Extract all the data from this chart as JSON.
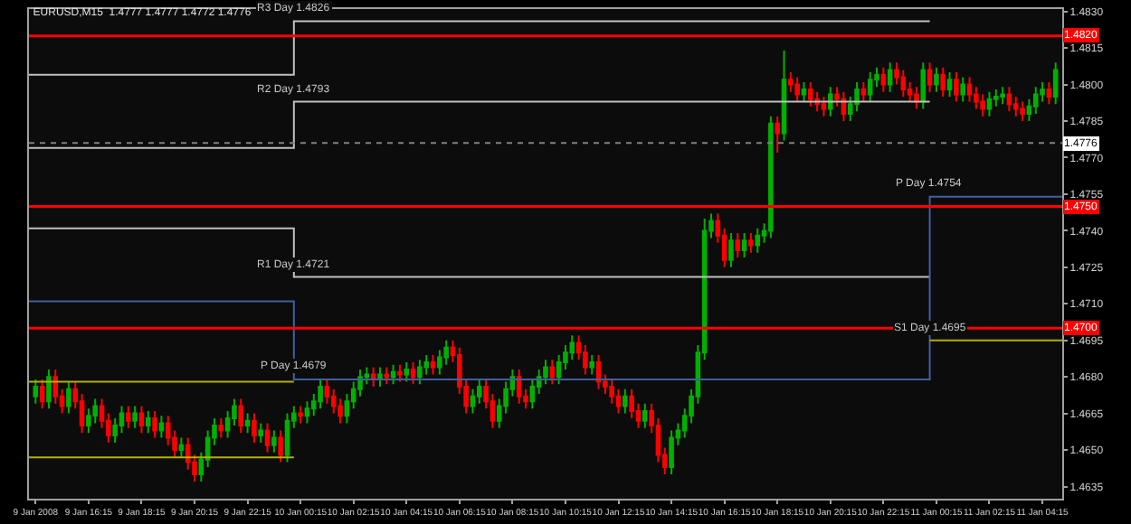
{
  "chart_data": {
    "type": "candlestick",
    "title": "EURUSD,M15  1.4777 1.4777 1.4772 1.4776",
    "colors": [
      "#00b000",
      "#ff0000",
      "#00b000",
      "#ff0000",
      "#ff0000",
      "#00b000",
      "#ff0000",
      "#ff0000",
      "#00b000",
      "#00b000",
      "#ff0000",
      "#ff0000",
      "#00b000",
      "#00b000",
      "#ff0000",
      "#00b000",
      "#ff0000",
      "#00b000",
      "#ff0000",
      "#00b000",
      "#ff0000",
      "#ff0000",
      "#00b000",
      "#ff0000",
      "#ff0000",
      "#00b000",
      "#00b000",
      "#00b000",
      "#ff0000",
      "#00b000",
      "#00b000",
      "#ff0000",
      "#00b000",
      "#ff0000",
      "#00b000",
      "#ff0000",
      "#00b000",
      "#ff0000",
      "#00b000",
      "#00b000",
      "#ff0000",
      "#00b000",
      "#00b000",
      "#00b000",
      "#ff0000",
      "#ff0000",
      "#ff0000",
      "#00b000",
      "#00b000",
      "#00b000",
      "#00b000",
      "#ff0000",
      "#00b000",
      "#ff0000",
      "#00b000",
      "#ff0000",
      "#00b000",
      "#ff0000",
      "#00b000",
      "#00b000",
      "#ff0000",
      "#00b000",
      "#00b000",
      "#ff0000",
      "#ff0000",
      "#ff0000",
      "#00b000",
      "#00b000",
      "#ff0000",
      "#ff0000",
      "#00b000",
      "#00b000",
      "#00b000",
      "#ff0000",
      "#ff0000",
      "#00b000",
      "#00b000",
      "#00b000",
      "#ff0000",
      "#00b000",
      "#00b000",
      "#00b000",
      "#ff0000",
      "#ff0000",
      "#00b000",
      "#ff0000",
      "#ff0000",
      "#ff0000",
      "#ff0000",
      "#00b000",
      "#ff0000",
      "#ff0000",
      "#00b000",
      "#ff0000",
      "#ff0000",
      "#ff0000",
      "#00b000",
      "#00b000",
      "#00b000",
      "#00b000",
      "#00b000",
      "#00b000",
      "#00b000",
      "#ff0000",
      "#ff0000",
      "#00b000",
      "#ff0000",
      "#00b000",
      "#ff0000",
      "#00b000",
      "#00b000",
      "#00b000",
      "#ff0000",
      "#00b000",
      "#ff0000",
      "#ff0000",
      "#00b000",
      "#ff0000",
      "#ff0000",
      "#ff0000",
      "#00b000",
      "#ff0000",
      "#ff0000",
      "#00b000",
      "#00b000",
      "#ff0000",
      "#00b000",
      "#00b000",
      "#ff0000",
      "#00b000",
      "#ff0000",
      "#ff0000",
      "#ff0000",
      "#ff0000",
      "#00b000",
      "#ff0000",
      "#00b000",
      "#ff0000",
      "#00b000",
      "#ff0000",
      "#00b000",
      "#ff0000",
      "#ff0000",
      "#ff0000",
      "#00b000",
      "#00b000",
      "#00b000",
      "#ff0000",
      "#ff0000",
      "#ff0000",
      "#00b000",
      "#00b000",
      "#00b000",
      "#ff0000",
      "#00b000"
    ],
    "x": [
      "2008-01-09T14:15",
      "2008-01-09T14:30",
      "2008-01-09T14:45",
      "2008-01-09T15:00",
      "2008-01-09T15:15",
      "2008-01-09T15:30",
      "2008-01-09T15:45",
      "2008-01-09T16:00",
      "2008-01-09T16:15",
      "2008-01-09T16:30",
      "2008-01-09T16:45",
      "2008-01-09T17:00",
      "2008-01-09T17:15",
      "2008-01-09T17:30",
      "2008-01-09T17:45",
      "2008-01-09T18:00",
      "2008-01-09T18:15",
      "2008-01-09T18:30",
      "2008-01-09T18:45",
      "2008-01-09T19:00",
      "2008-01-09T19:15",
      "2008-01-09T19:30",
      "2008-01-09T19:45",
      "2008-01-09T20:00",
      "2008-01-09T20:15",
      "2008-01-09T20:30",
      "2008-01-09T20:45",
      "2008-01-09T21:00",
      "2008-01-09T21:15",
      "2008-01-09T21:30",
      "2008-01-09T21:45",
      "2008-01-09T22:00",
      "2008-01-09T22:15",
      "2008-01-09T22:30",
      "2008-01-09T22:45",
      "2008-01-09T23:00",
      "2008-01-09T23:15",
      "2008-01-09T23:30",
      "2008-01-09T23:45",
      "2008-01-10T00:00",
      "2008-01-10T00:15",
      "2008-01-10T00:30",
      "2008-01-10T00:45",
      "2008-01-10T01:00",
      "2008-01-10T01:15",
      "2008-01-10T01:30",
      "2008-01-10T01:45",
      "2008-01-10T02:00",
      "2008-01-10T02:15",
      "2008-01-10T02:30",
      "2008-01-10T02:45",
      "2008-01-10T03:00",
      "2008-01-10T03:15",
      "2008-01-10T03:30",
      "2008-01-10T03:45",
      "2008-01-10T04:00",
      "2008-01-10T04:15",
      "2008-01-10T04:30",
      "2008-01-10T04:45",
      "2008-01-10T05:00",
      "2008-01-10T05:15",
      "2008-01-10T05:30",
      "2008-01-10T05:45",
      "2008-01-10T06:00",
      "2008-01-10T06:15",
      "2008-01-10T06:30",
      "2008-01-10T06:45",
      "2008-01-10T07:00",
      "2008-01-10T07:15",
      "2008-01-10T07:30",
      "2008-01-10T07:45",
      "2008-01-10T08:00",
      "2008-01-10T08:15",
      "2008-01-10T08:30",
      "2008-01-10T08:45",
      "2008-01-10T09:00",
      "2008-01-10T09:15",
      "2008-01-10T09:30",
      "2008-01-10T09:45",
      "2008-01-10T10:00",
      "2008-01-10T10:15",
      "2008-01-10T10:30",
      "2008-01-10T10:45",
      "2008-01-10T11:00",
      "2008-01-10T11:15",
      "2008-01-10T11:30",
      "2008-01-10T11:45",
      "2008-01-10T12:00",
      "2008-01-10T12:15",
      "2008-01-10T12:30",
      "2008-01-10T12:45",
      "2008-01-10T13:00",
      "2008-01-10T13:15",
      "2008-01-10T13:30",
      "2008-01-10T13:45",
      "2008-01-10T14:00",
      "2008-01-10T14:15",
      "2008-01-10T14:30",
      "2008-01-10T14:45",
      "2008-01-10T15:00",
      "2008-01-10T15:15",
      "2008-01-10T15:30",
      "2008-01-10T15:45",
      "2008-01-10T16:00",
      "2008-01-10T16:15",
      "2008-01-10T16:30",
      "2008-01-10T16:45",
      "2008-01-10T17:00",
      "2008-01-10T17:15",
      "2008-01-10T17:30",
      "2008-01-10T17:45",
      "2008-01-10T18:00",
      "2008-01-10T18:15",
      "2008-01-10T18:30",
      "2008-01-10T18:45",
      "2008-01-10T19:00",
      "2008-01-10T19:15",
      "2008-01-10T19:30",
      "2008-01-10T19:45",
      "2008-01-10T20:00",
      "2008-01-10T20:15",
      "2008-01-10T20:30",
      "2008-01-10T20:45",
      "2008-01-10T21:00",
      "2008-01-10T21:15",
      "2008-01-10T21:30",
      "2008-01-10T21:45",
      "2008-01-10T22:00",
      "2008-01-10T22:15",
      "2008-01-10T22:30",
      "2008-01-10T22:45",
      "2008-01-10T23:00",
      "2008-01-10T23:15",
      "2008-01-10T23:30",
      "2008-01-10T23:45",
      "2008-01-11T00:00",
      "2008-01-11T00:15",
      "2008-01-11T00:30",
      "2008-01-11T00:45",
      "2008-01-11T01:00",
      "2008-01-11T01:15",
      "2008-01-11T01:30",
      "2008-01-11T01:45",
      "2008-01-11T02:00",
      "2008-01-11T02:15",
      "2008-01-11T02:30",
      "2008-01-11T02:45",
      "2008-01-11T03:00",
      "2008-01-11T03:15",
      "2008-01-11T03:30",
      "2008-01-11T03:45",
      "2008-01-11T04:00",
      "2008-01-11T04:15",
      "2008-01-11T04:30",
      "2008-01-11T04:45"
    ],
    "ohlc": [
      [
        1.4672,
        1.4679,
        1.4669,
        1.4676
      ],
      [
        1.4676,
        1.4679,
        1.4667,
        1.467
      ],
      [
        1.467,
        1.4683,
        1.4667,
        1.468
      ],
      [
        1.468,
        1.4683,
        1.4669,
        1.4672
      ],
      [
        1.4672,
        1.4675,
        1.4665,
        1.4668
      ],
      [
        1.4668,
        1.4678,
        1.4665,
        1.4675
      ],
      [
        1.4675,
        1.4678,
        1.4667,
        1.467
      ],
      [
        1.467,
        1.4673,
        1.4657,
        1.466
      ],
      [
        1.466,
        1.4667,
        1.4657,
        1.4664
      ],
      [
        1.4664,
        1.4671,
        1.4661,
        1.4668
      ],
      [
        1.4668,
        1.4671,
        1.4659,
        1.4662
      ],
      [
        1.4662,
        1.4665,
        1.4653,
        1.4656
      ],
      [
        1.4656,
        1.4663,
        1.4653,
        1.466
      ],
      [
        1.466,
        1.4668,
        1.4657,
        1.4665
      ],
      [
        1.4665,
        1.4668,
        1.4659,
        1.4662
      ],
      [
        1.4662,
        1.4668,
        1.4659,
        1.4665
      ],
      [
        1.4665,
        1.4668,
        1.4657,
        1.466
      ],
      [
        1.466,
        1.4666,
        1.4657,
        1.4663
      ],
      [
        1.4663,
        1.4666,
        1.4655,
        1.4658
      ],
      [
        1.4658,
        1.4664,
        1.4655,
        1.4661
      ],
      [
        1.4661,
        1.4664,
        1.4652,
        1.4655
      ],
      [
        1.4655,
        1.4658,
        1.4647,
        1.465
      ],
      [
        1.465,
        1.4655,
        1.4647,
        1.4652
      ],
      [
        1.4652,
        1.4655,
        1.4642,
        1.4645
      ],
      [
        1.4645,
        1.4648,
        1.4637,
        1.464
      ],
      [
        1.464,
        1.4649,
        1.4637,
        1.4646
      ],
      [
        1.4646,
        1.4658,
        1.4643,
        1.4655
      ],
      [
        1.4655,
        1.4663,
        1.4652,
        1.466
      ],
      [
        1.466,
        1.4663,
        1.4655,
        1.4658
      ],
      [
        1.4658,
        1.4666,
        1.4655,
        1.4663
      ],
      [
        1.4663,
        1.4671,
        1.466,
        1.4668
      ],
      [
        1.4668,
        1.4671,
        1.4657,
        1.466
      ],
      [
        1.466,
        1.4665,
        1.4657,
        1.4662
      ],
      [
        1.4662,
        1.4665,
        1.4653,
        1.4656
      ],
      [
        1.4656,
        1.4661,
        1.4653,
        1.4658
      ],
      [
        1.4658,
        1.4661,
        1.4649,
        1.4652
      ],
      [
        1.4652,
        1.4658,
        1.4649,
        1.4655
      ],
      [
        1.4655,
        1.4658,
        1.4645,
        1.4648
      ],
      [
        1.4648,
        1.4665,
        1.4645,
        1.4662
      ],
      [
        1.4662,
        1.4668,
        1.4659,
        1.4665
      ],
      [
        1.4665,
        1.4668,
        1.4661,
        1.4664
      ],
      [
        1.4664,
        1.467,
        1.4661,
        1.4667
      ],
      [
        1.4667,
        1.4673,
        1.4664,
        1.467
      ],
      [
        1.467,
        1.4679,
        1.4667,
        1.4676
      ],
      [
        1.4676,
        1.4679,
        1.4669,
        1.4672
      ],
      [
        1.4672,
        1.4675,
        1.4665,
        1.4668
      ],
      [
        1.4668,
        1.4671,
        1.4661,
        1.4664
      ],
      [
        1.4664,
        1.4673,
        1.4661,
        1.467
      ],
      [
        1.467,
        1.4678,
        1.4667,
        1.4675
      ],
      [
        1.4675,
        1.4683,
        1.4672,
        1.468
      ],
      [
        1.468,
        1.4684,
        1.4677,
        1.4681
      ],
      [
        1.4681,
        1.4684,
        1.4676,
        1.4679
      ],
      [
        1.4679,
        1.4684,
        1.4676,
        1.4681
      ],
      [
        1.4681,
        1.4684,
        1.4677,
        1.468
      ],
      [
        1.468,
        1.4685,
        1.4677,
        1.4682
      ],
      [
        1.4682,
        1.4685,
        1.4678,
        1.4681
      ],
      [
        1.4681,
        1.4686,
        1.4678,
        1.4683
      ],
      [
        1.4683,
        1.4686,
        1.4677,
        1.468
      ],
      [
        1.468,
        1.4687,
        1.4677,
        1.4684
      ],
      [
        1.4684,
        1.4689,
        1.4681,
        1.4686
      ],
      [
        1.4686,
        1.4689,
        1.4681,
        1.4684
      ],
      [
        1.4684,
        1.4691,
        1.4681,
        1.4688
      ],
      [
        1.4688,
        1.4695,
        1.4685,
        1.4692
      ],
      [
        1.4692,
        1.4695,
        1.4686,
        1.4689
      ],
      [
        1.4689,
        1.4692,
        1.4673,
        1.4676
      ],
      [
        1.4676,
        1.4679,
        1.4665,
        1.4668
      ],
      [
        1.4668,
        1.4675,
        1.4665,
        1.4672
      ],
      [
        1.4672,
        1.4679,
        1.4669,
        1.4676
      ],
      [
        1.4676,
        1.4679,
        1.4667,
        1.467
      ],
      [
        1.467,
        1.4673,
        1.4659,
        1.4662
      ],
      [
        1.4662,
        1.4671,
        1.4659,
        1.4668
      ],
      [
        1.4668,
        1.4678,
        1.4665,
        1.4675
      ],
      [
        1.4675,
        1.4683,
        1.4672,
        1.468
      ],
      [
        1.468,
        1.4683,
        1.4669,
        1.4672
      ],
      [
        1.4672,
        1.4675,
        1.4667,
        1.467
      ],
      [
        1.467,
        1.4679,
        1.4667,
        1.4676
      ],
      [
        1.4676,
        1.4683,
        1.4673,
        1.468
      ],
      [
        1.468,
        1.4687,
        1.4677,
        1.4684
      ],
      [
        1.4684,
        1.4687,
        1.4677,
        1.468
      ],
      [
        1.468,
        1.4689,
        1.4677,
        1.4686
      ],
      [
        1.4686,
        1.4693,
        1.4683,
        1.469
      ],
      [
        1.469,
        1.4697,
        1.4687,
        1.4694
      ],
      [
        1.4694,
        1.4697,
        1.4687,
        1.469
      ],
      [
        1.469,
        1.4693,
        1.4681,
        1.4684
      ],
      [
        1.4684,
        1.4689,
        1.4681,
        1.4686
      ],
      [
        1.4686,
        1.4689,
        1.4675,
        1.4678
      ],
      [
        1.4678,
        1.4681,
        1.4673,
        1.4676
      ],
      [
        1.4676,
        1.4679,
        1.4669,
        1.4672
      ],
      [
        1.4672,
        1.4675,
        1.4665,
        1.4668
      ],
      [
        1.4668,
        1.4675,
        1.4665,
        1.4672
      ],
      [
        1.4672,
        1.4675,
        1.4663,
        1.4666
      ],
      [
        1.4666,
        1.4669,
        1.4659,
        1.4662
      ],
      [
        1.4662,
        1.4669,
        1.4659,
        1.4666
      ],
      [
        1.4666,
        1.4669,
        1.4657,
        1.466
      ],
      [
        1.466,
        1.4663,
        1.4645,
        1.4648
      ],
      [
        1.4648,
        1.4651,
        1.464,
        1.4643
      ],
      [
        1.4643,
        1.4658,
        1.464,
        1.4655
      ],
      [
        1.4655,
        1.4661,
        1.4652,
        1.4658
      ],
      [
        1.4658,
        1.4667,
        1.4655,
        1.4664
      ],
      [
        1.4664,
        1.4675,
        1.4661,
        1.4672
      ],
      [
        1.4672,
        1.4693,
        1.4669,
        1.469
      ],
      [
        1.469,
        1.4745,
        1.4687,
        1.474
      ],
      [
        1.474,
        1.4747,
        1.4737,
        1.4744
      ],
      [
        1.4744,
        1.4747,
        1.4735,
        1.4738
      ],
      [
        1.4738,
        1.4741,
        1.4725,
        1.4728
      ],
      [
        1.4728,
        1.4739,
        1.4725,
        1.4736
      ],
      [
        1.4736,
        1.4739,
        1.4729,
        1.4732
      ],
      [
        1.4732,
        1.4739,
        1.4729,
        1.4736
      ],
      [
        1.4736,
        1.4739,
        1.4731,
        1.4734
      ],
      [
        1.4734,
        1.4741,
        1.4731,
        1.4738
      ],
      [
        1.4738,
        1.4743,
        1.4735,
        1.474
      ],
      [
        1.474,
        1.4787,
        1.4737,
        1.4784
      ],
      [
        1.4784,
        1.4787,
        1.4772,
        1.478
      ],
      [
        1.478,
        1.4814,
        1.4777,
        1.4802
      ],
      [
        1.4802,
        1.4805,
        1.4797,
        1.48
      ],
      [
        1.48,
        1.4803,
        1.4793,
        1.4796
      ],
      [
        1.4796,
        1.4801,
        1.4793,
        1.4798
      ],
      [
        1.4798,
        1.4801,
        1.4791,
        1.4794
      ],
      [
        1.4794,
        1.4797,
        1.4789,
        1.4792
      ],
      [
        1.4792,
        1.4795,
        1.4787,
        1.479
      ],
      [
        1.479,
        1.4799,
        1.4787,
        1.4796
      ],
      [
        1.4796,
        1.4799,
        1.4791,
        1.4794
      ],
      [
        1.4794,
        1.4797,
        1.4785,
        1.4788
      ],
      [
        1.4788,
        1.4795,
        1.4785,
        1.4792
      ],
      [
        1.4792,
        1.4801,
        1.4789,
        1.4798
      ],
      [
        1.4798,
        1.4801,
        1.4793,
        1.4796
      ],
      [
        1.4796,
        1.4805,
        1.4793,
        1.4802
      ],
      [
        1.4802,
        1.4807,
        1.4799,
        1.4804
      ],
      [
        1.4804,
        1.4807,
        1.4797,
        1.48
      ],
      [
        1.48,
        1.4809,
        1.4797,
        1.4806
      ],
      [
        1.4806,
        1.4809,
        1.48,
        1.4803
      ],
      [
        1.4803,
        1.4806,
        1.4795,
        1.4798
      ],
      [
        1.4798,
        1.4801,
        1.4793,
        1.4796
      ],
      [
        1.4796,
        1.4799,
        1.479,
        1.4793
      ],
      [
        1.4793,
        1.4809,
        1.479,
        1.4806
      ],
      [
        1.4806,
        1.4809,
        1.4797,
        1.48
      ],
      [
        1.48,
        1.4807,
        1.4797,
        1.4804
      ],
      [
        1.4804,
        1.4807,
        1.4795,
        1.4798
      ],
      [
        1.4798,
        1.4805,
        1.4795,
        1.4802
      ],
      [
        1.4802,
        1.4805,
        1.4793,
        1.4796
      ],
      [
        1.4796,
        1.4803,
        1.4793,
        1.48
      ],
      [
        1.48,
        1.4803,
        1.4793,
        1.4796
      ],
      [
        1.4796,
        1.4799,
        1.479,
        1.4793
      ],
      [
        1.4793,
        1.4796,
        1.4787,
        1.479
      ],
      [
        1.479,
        1.4797,
        1.4787,
        1.4794
      ],
      [
        1.4794,
        1.4798,
        1.4791,
        1.4795
      ],
      [
        1.4795,
        1.4799,
        1.4792,
        1.4796
      ],
      [
        1.4796,
        1.4799,
        1.4789,
        1.4792
      ],
      [
        1.4792,
        1.4795,
        1.4787,
        1.479
      ],
      [
        1.479,
        1.4793,
        1.4785,
        1.4788
      ],
      [
        1.4788,
        1.4794,
        1.4785,
        1.4791
      ],
      [
        1.4791,
        1.4799,
        1.4788,
        1.4796
      ],
      [
        1.4796,
        1.4801,
        1.4793,
        1.4798
      ],
      [
        1.4798,
        1.4801,
        1.4792,
        1.4795
      ],
      [
        1.4795,
        1.4809,
        1.4792,
        1.4806
      ]
    ],
    "series": [
      {
        "type": "step",
        "color": "#c0c0c0",
        "x": [
          "2008-01-09T14:00",
          "2008-01-10T00:00",
          "2008-01-11T00:00"
        ],
        "values": [
          1.4804,
          1.4826,
          1.4826
        ]
      },
      {
        "type": "step",
        "color": "#c0c0c0",
        "x": [
          "2008-01-09T14:00",
          "2008-01-10T00:00",
          "2008-01-11T00:00"
        ],
        "values": [
          1.4774,
          1.4793,
          1.4793
        ]
      },
      {
        "type": "step",
        "color": "#c0c0c0",
        "x": [
          "2008-01-09T14:00",
          "2008-01-10T00:00",
          "2008-01-11T00:00"
        ],
        "values": [
          1.4741,
          1.4721,
          1.4721
        ]
      },
      {
        "type": "step",
        "color": "#4060a0",
        "x": [
          "2008-01-09T14:00",
          "2008-01-10T00:00",
          "2008-01-11T00:00",
          "2008-01-11T05:00"
        ],
        "values": [
          1.4711,
          1.4679,
          1.4754,
          1.4754
        ]
      },
      {
        "type": "step",
        "color": "#b0b000",
        "x": [
          "2008-01-09T14:00",
          "2008-01-10T00:00",
          "2008-01-10T12:00",
          "2008-01-11T00:00",
          "2008-01-11T05:00"
        ],
        "values": [
          1.4678,
          1.4678,
          null,
          1.4695,
          1.4695
        ]
      },
      {
        "type": "step",
        "color": "#b0b000",
        "x": [
          "2008-01-09T14:00",
          "2008-01-10T00:00"
        ],
        "values": [
          1.4647,
          1.4647
        ]
      }
    ],
    "annotations": [
      {
        "text": "R3 Day 1.4826",
        "x": "2008-01-10T00:00",
        "y": 1.4826
      },
      {
        "text": "R2 Day 1.4793",
        "x": "2008-01-10T00:00",
        "y": 1.4793
      },
      {
        "text": "R1 Day 1.4721",
        "x": "2008-01-10T00:00",
        "y": 1.4721
      },
      {
        "text": "P Day 1.4679",
        "x": "2008-01-10T00:00",
        "y": 1.4679
      },
      {
        "text": "P Day 1.4754",
        "x": "2008-01-11T00:00",
        "y": 1.4754
      },
      {
        "text": "S1 Day 1.4695",
        "x": "2008-01-11T00:00",
        "y": 1.4695
      }
    ],
    "ref_lines": [
      {
        "axis": "y",
        "value": 1.482,
        "label": "1.4820",
        "color": "#ff0000",
        "line_style": "solid"
      },
      {
        "axis": "y",
        "value": 1.475,
        "label": "1.4750",
        "color": "#ff0000",
        "line_style": "solid"
      },
      {
        "axis": "y",
        "value": 1.47,
        "label": "1.4700",
        "color": "#ff0000",
        "line_style": "solid"
      },
      {
        "axis": "y",
        "value": 1.4776,
        "label": "1.4776",
        "color": "#808080",
        "line_style": "dotted"
      }
    ],
    "xlim": [
      "2008-01-09T14:00",
      "2008-01-11T05:00"
    ],
    "xticks": [
      {
        "value": "2008-01-09T14:15",
        "label": "9 Jan 2008"
      },
      {
        "value": "2008-01-09T16:15",
        "label": "9 Jan 16:15"
      },
      {
        "value": "2008-01-09T18:15",
        "label": "9 Jan 18:15"
      },
      {
        "value": "2008-01-09T20:15",
        "label": "9 Jan 20:15"
      },
      {
        "value": "2008-01-09T22:15",
        "label": "9 Jan 22:15"
      },
      {
        "value": "2008-01-10T00:15",
        "label": "10 Jan 00:15"
      },
      {
        "value": "2008-01-10T02:15",
        "label": "10 Jan 02:15"
      },
      {
        "value": "2008-01-10T04:15",
        "label": "10 Jan 04:15"
      },
      {
        "value": "2008-01-10T06:15",
        "label": "10 Jan 06:15"
      },
      {
        "value": "2008-01-10T08:15",
        "label": "10 Jan 08:15"
      },
      {
        "value": "2008-01-10T10:15",
        "label": "10 Jan 10:15"
      },
      {
        "value": "2008-01-10T12:15",
        "label": "10 Jan 12:15"
      },
      {
        "value": "2008-01-10T14:15",
        "label": "10 Jan 14:15"
      },
      {
        "value": "2008-01-10T16:15",
        "label": "10 Jan 16:15"
      },
      {
        "value": "2008-01-10T18:15",
        "label": "10 Jan 18:15"
      },
      {
        "value": "2008-01-10T20:15",
        "label": "10 Jan 20:15"
      },
      {
        "value": "2008-01-10T22:15",
        "label": "10 Jan 22:15"
      },
      {
        "value": "2008-01-11T00:15",
        "label": "11 Jan 00:15"
      },
      {
        "value": "2008-01-11T02:15",
        "label": "11 Jan 02:15"
      },
      {
        "value": "2008-01-11T04:15",
        "label": "11 Jan 04:15"
      }
    ],
    "ylim": [
      1.463,
      1.4831
    ],
    "yticks": [
      {
        "value": 1.483,
        "label": "1.4830"
      },
      {
        "value": 1.4815,
        "label": "1.4815"
      },
      {
        "value": 1.48,
        "label": "1.4800"
      },
      {
        "value": 1.4785,
        "label": "1.4785"
      },
      {
        "value": 1.477,
        "label": "1.4770"
      },
      {
        "value": 1.4755,
        "label": "1.4755"
      },
      {
        "value": 1.474,
        "label": "1.4740"
      },
      {
        "value": 1.4725,
        "label": "1.4725"
      },
      {
        "value": 1.471,
        "label": "1.4710"
      },
      {
        "value": 1.4695,
        "label": "1.4695"
      },
      {
        "value": 1.468,
        "label": "1.4680"
      },
      {
        "value": 1.4665,
        "label": "1.4665"
      },
      {
        "value": 1.465,
        "label": "1.4650"
      },
      {
        "value": 1.4635,
        "label": "1.4635"
      }
    ],
    "tick_labels": true
  }
}
